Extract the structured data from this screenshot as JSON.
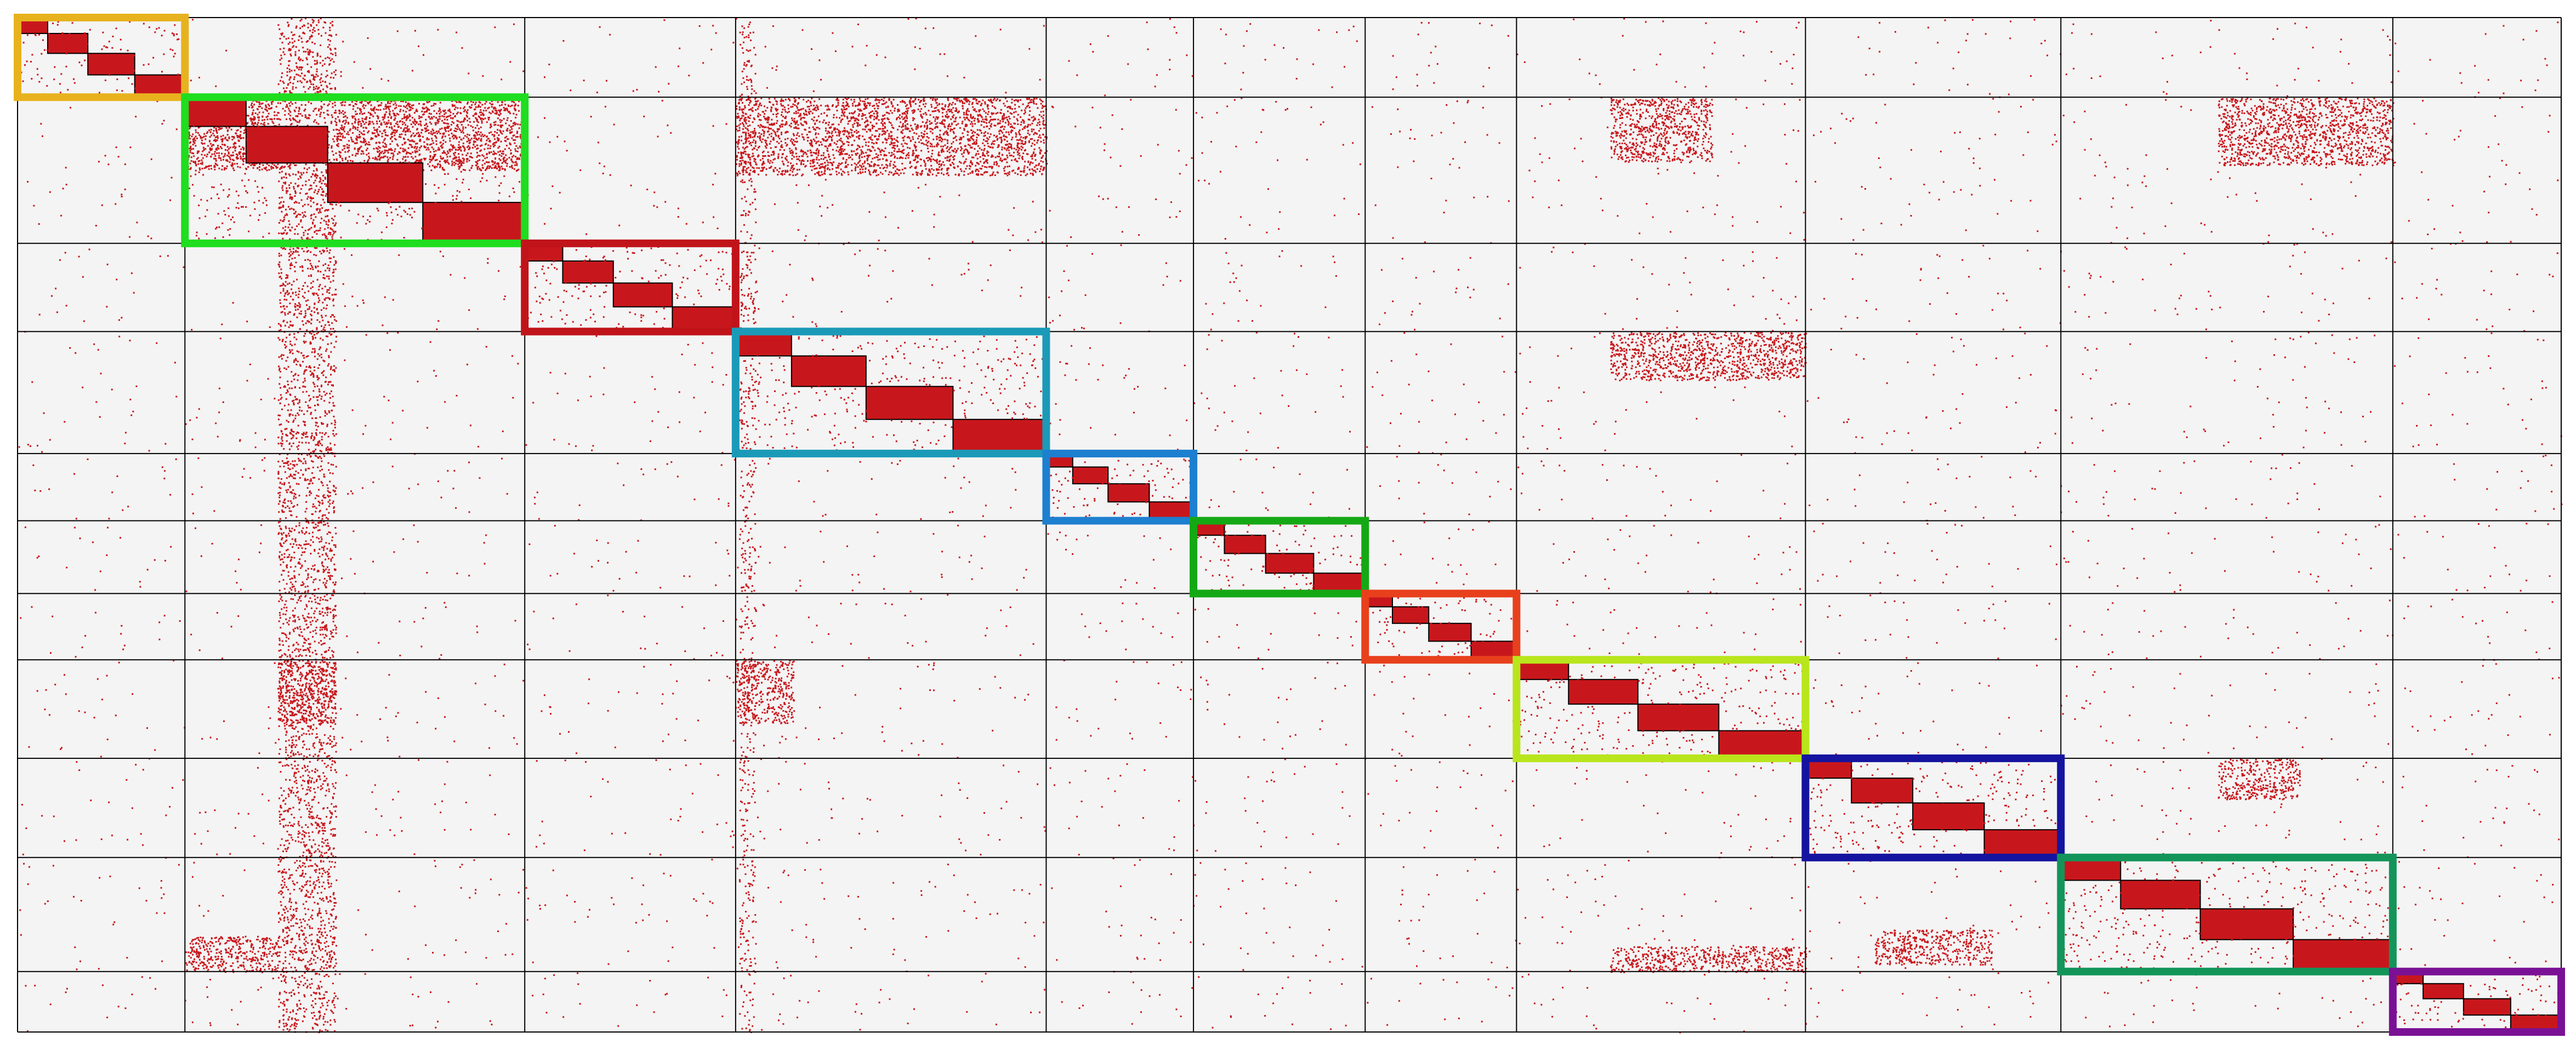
{
  "chart_data": {
    "type": "heatmap",
    "description_kind": "block-structured binary matrix (co-occurrence) with highlighted diagonal blocks",
    "title": "",
    "xlabel": "",
    "ylabel": "",
    "grid": true,
    "legend": "none",
    "colors": {
      "background": "#f4f4f4",
      "points": "#c8171c",
      "grid_lines": "#000000"
    },
    "col_groups": [
      {
        "index": 0,
        "start": 0.0,
        "end": 0.0658
      },
      {
        "index": 1,
        "start": 0.0658,
        "end": 0.1994
      },
      {
        "index": 2,
        "start": 0.1994,
        "end": 0.2823
      },
      {
        "index": 3,
        "start": 0.2823,
        "end": 0.4044
      },
      {
        "index": 4,
        "start": 0.4044,
        "end": 0.4623
      },
      {
        "index": 5,
        "start": 0.4623,
        "end": 0.5298
      },
      {
        "index": 6,
        "start": 0.5298,
        "end": 0.5893
      },
      {
        "index": 7,
        "start": 0.5893,
        "end": 0.7029
      },
      {
        "index": 8,
        "start": 0.7029,
        "end": 0.8033
      },
      {
        "index": 9,
        "start": 0.8033,
        "end": 0.9338
      },
      {
        "index": 10,
        "start": 0.9338,
        "end": 1.0
      }
    ],
    "row_groups": [
      {
        "index": 0,
        "start": 0.0,
        "end": 0.0785
      },
      {
        "index": 1,
        "start": 0.0785,
        "end": 0.2226
      },
      {
        "index": 2,
        "start": 0.2226,
        "end": 0.3095
      },
      {
        "index": 3,
        "start": 0.3095,
        "end": 0.4298
      },
      {
        "index": 4,
        "start": 0.4298,
        "end": 0.496
      },
      {
        "index": 5,
        "start": 0.496,
        "end": 0.5678
      },
      {
        "index": 6,
        "start": 0.5678,
        "end": 0.6331
      },
      {
        "index": 7,
        "start": 0.6331,
        "end": 0.7302
      },
      {
        "index": 8,
        "start": 0.7302,
        "end": 0.828
      },
      {
        "index": 9,
        "start": 0.828,
        "end": 0.9404
      },
      {
        "index": 10,
        "start": 0.9404,
        "end": 1.0
      }
    ],
    "highlight_colors": [
      "#e8b21e",
      "#1fdd1f",
      "#c0141a",
      "#1b9ab8",
      "#1d7fd0",
      "#15a815",
      "#e8401c",
      "#b8e51c",
      "#1414a0",
      "#13955a",
      "#7a1195"
    ],
    "dense_strips": [
      {
        "orientation": "vertical",
        "col_range": [
          0.1022,
          0.125
        ],
        "density": 0.75
      },
      {
        "orientation": "vertical",
        "col_range": [
          0.2836,
          0.29
        ],
        "density": 0.45
      }
    ]
  }
}
